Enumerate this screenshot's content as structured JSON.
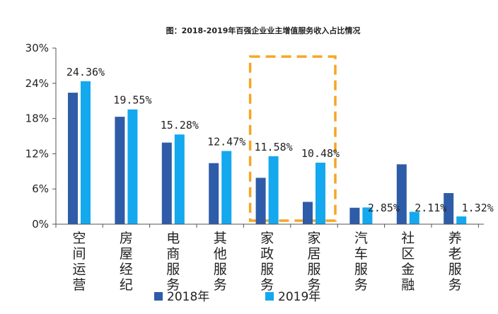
{
  "chart_data": {
    "type": "bar",
    "title": "图：2018-2019年百强企业业主增值服务收入占比情况",
    "categories": [
      "空间运营",
      "房屋经纪",
      "电商服务",
      "其他服务",
      "家政服务",
      "家居服务",
      "汽车服务",
      "社区金融",
      "养老服务"
    ],
    "series": [
      {
        "name": "2018年",
        "color": "#2E5CA8",
        "values": [
          22.4,
          18.3,
          13.9,
          10.4,
          7.9,
          3.8,
          2.8,
          10.2,
          5.3
        ]
      },
      {
        "name": "2019年",
        "color": "#14A8EE",
        "values": [
          24.36,
          19.55,
          15.28,
          12.47,
          11.58,
          10.48,
          2.85,
          2.11,
          1.32
        ]
      }
    ],
    "data_labels": [
      "24.36%",
      "19.55%",
      "15.28%",
      "12.47%",
      "11.58%",
      "10.48%",
      "2.85%",
      "2.11%",
      "1.32%"
    ],
    "y_ticks": [
      "0%",
      "6%",
      "12%",
      "18%",
      "24%",
      "30%"
    ],
    "ylim": [
      0,
      30
    ],
    "xlabel": "",
    "ylabel": "",
    "legend_position": "bottom",
    "highlight": {
      "categories": [
        "家政服务",
        "家居服务"
      ],
      "color": "#F5A623",
      "style": "dashed"
    }
  }
}
